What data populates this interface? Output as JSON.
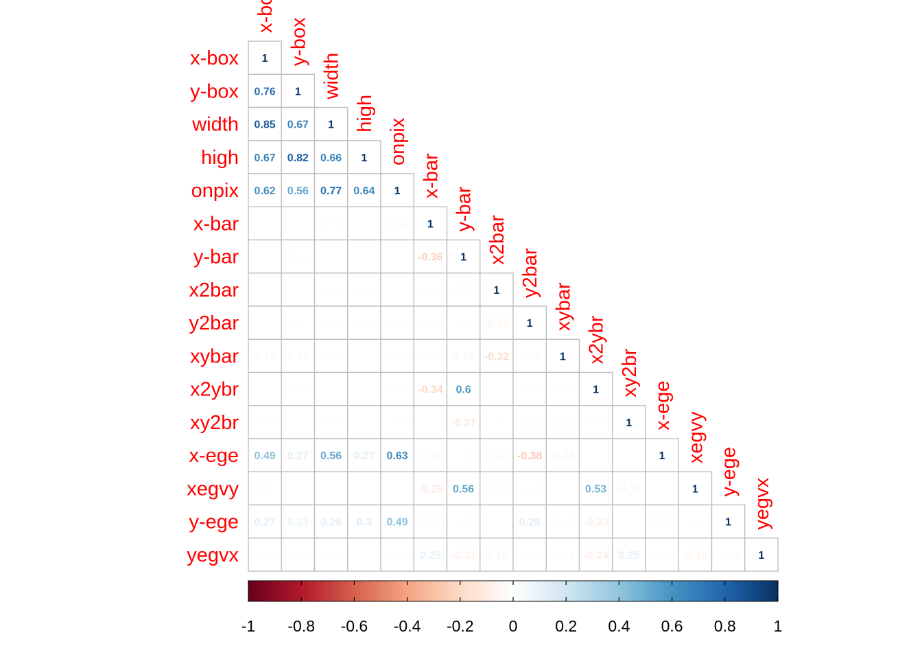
{
  "chart_data": {
    "type": "heatmap",
    "variables": [
      "x-box",
      "y-box",
      "width",
      "high",
      "onpix",
      "x-bar",
      "y-bar",
      "x2bar",
      "y2bar",
      "xybar",
      "x2ybr",
      "xy2br",
      "x-ege",
      "xegvy",
      "y-ege",
      "yegvx"
    ],
    "lower_triangle": [
      [
        1
      ],
      [
        0.76,
        1
      ],
      [
        0.85,
        0.67,
        1
      ],
      [
        0.67,
        0.82,
        0.66,
        1
      ],
      [
        0.62,
        0.56,
        0.77,
        0.64,
        1
      ],
      [
        -0.03,
        0.05,
        0.06,
        0.04,
        0.14,
        1
      ],
      [
        0.05,
        -0.04,
        0.02,
        -0.02,
        -0.03,
        -0.36,
        1
      ],
      [
        0.01,
        0.03,
        -0.1,
        0.08,
        -0.01,
        -0.05,
        -0.12,
        1
      ],
      [
        0.05,
        0.1,
        0.06,
        0.06,
        -0.07,
        -0.12,
        -0.05,
        -0.19,
        1
      ],
      [
        0.15,
        0.16,
        0.12,
        0.01,
        -0.07,
        0.09,
        0.18,
        -0.32,
        0.13,
        1
      ],
      [
        0.04,
        -0.05,
        0.01,
        0.01,
        -0.07,
        -0.34,
        0.6,
        0.04,
        -0.06,
        0.06,
        1
      ],
      [
        -0.05,
        -0.01,
        -0.05,
        0.03,
        -0.04,
        -0.03,
        -0.27,
        0.08,
        0.12,
        -0.11,
        0.06,
        1
      ],
      [
        0.49,
        0.27,
        0.56,
        0.27,
        0.63,
        0.14,
        -0.04,
        0.14,
        -0.38,
        -0.18,
        0.05,
        -0.01,
        1
      ],
      [
        0.1,
        0.0,
        0.05,
        0.03,
        0.02,
        -0.25,
        0.56,
        -0.08,
        -0.05,
        0.03,
        0.53,
        -0.18,
        0.0,
        1
      ],
      [
        0.27,
        0.23,
        0.26,
        0.3,
        0.49,
        0.13,
        -0.08,
        0.0,
        0.28,
        -0.09,
        -0.23,
        0.05,
        0.11,
        -0.06,
        1
      ],
      [
        -0.11,
        -0.04,
        -0.12,
        -0.03,
        -0.06,
        0.25,
        -0.21,
        0.18,
        -0.06,
        -0.11,
        -0.24,
        0.25,
        -0.05,
        -0.19,
        0.14,
        1
      ]
    ],
    "colorbar": {
      "range": [
        -1,
        1
      ],
      "ticks": [
        "-1",
        "-0.8",
        "-0.6",
        "-0.4",
        "-0.2",
        "0",
        "0.2",
        "0.4",
        "0.6",
        "0.8",
        "1"
      ]
    },
    "colors": {
      "label": "#ff0000",
      "grid": "#bebebe",
      "palette": [
        "#67001f",
        "#b2182b",
        "#d6604d",
        "#f4a582",
        "#fddbc7",
        "#ffffff",
        "#d1e5f0",
        "#92c5de",
        "#4393c3",
        "#2166ac",
        "#053061"
      ]
    }
  }
}
